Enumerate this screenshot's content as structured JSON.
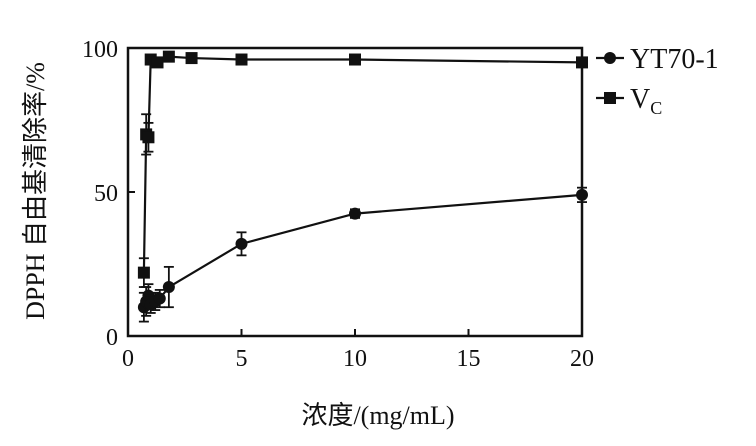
{
  "chart_data": {
    "type": "line",
    "title": "",
    "xlabel": "浓度/(mg/mL)",
    "ylabel": "DPPH 自由基清除率/%",
    "xlim": [
      0,
      20
    ],
    "ylim": [
      0,
      100
    ],
    "xticks": [
      0,
      5,
      10,
      15,
      20
    ],
    "yticks": [
      0,
      50,
      100
    ],
    "grid": false,
    "legend_position": "top-right",
    "series": [
      {
        "name": "YT70-1",
        "marker": "circle",
        "color": "#111111",
        "x": [
          0.7,
          0.8,
          0.9,
          1.0,
          1.2,
          1.4,
          1.8,
          5,
          10,
          20
        ],
        "y": [
          10,
          12,
          14,
          11,
          12,
          13,
          17,
          32,
          42.5,
          49
        ],
        "err": [
          5,
          5,
          4,
          3,
          3,
          3,
          7,
          4,
          1.5,
          2.5
        ]
      },
      {
        "name_main": "V",
        "name_sub": "C",
        "marker": "square",
        "color": "#111111",
        "x": [
          0.7,
          0.8,
          0.9,
          1.0,
          1.3,
          1.8,
          2.8,
          5,
          10,
          20
        ],
        "y": [
          22,
          70,
          69,
          96,
          95,
          97,
          96.5,
          96,
          96,
          95
        ],
        "err": [
          5,
          7,
          5,
          1,
          1,
          1,
          1,
          1,
          1,
          1
        ]
      }
    ]
  }
}
